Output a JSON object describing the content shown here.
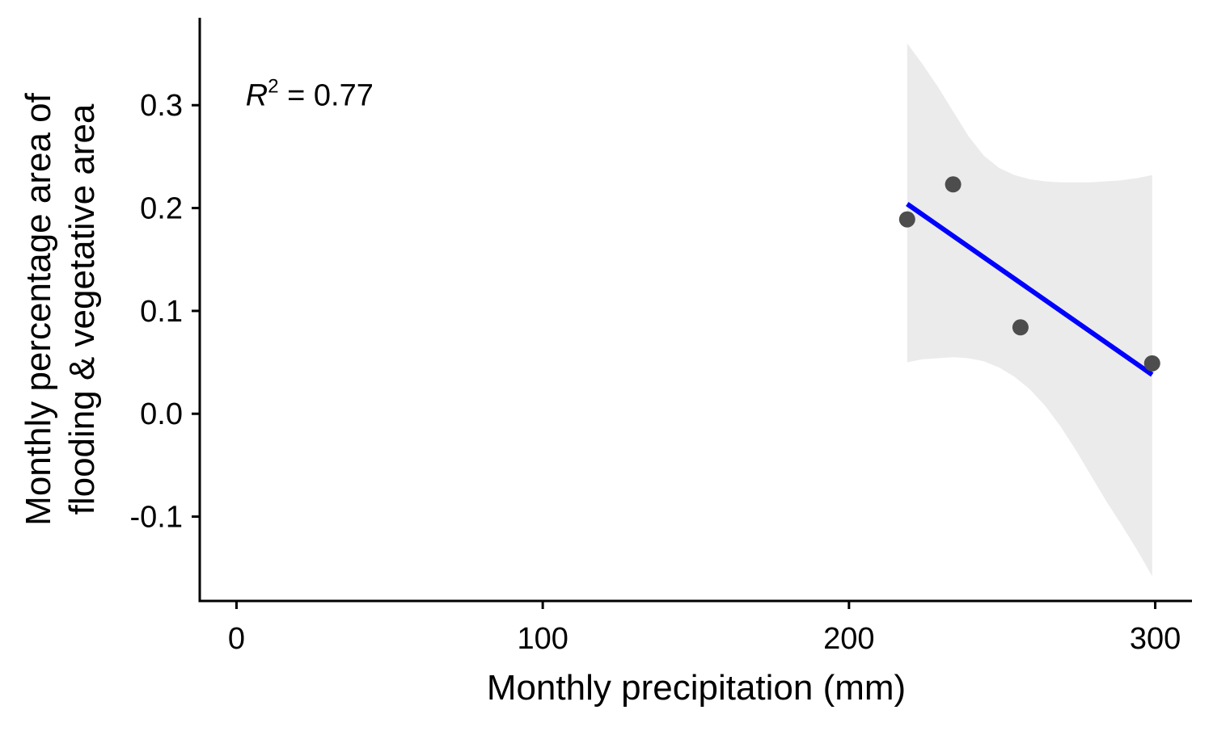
{
  "chart_data": {
    "type": "scatter",
    "title": "",
    "xlabel": "Monthly precipitation (mm)",
    "ylabel_lines": [
      "Monthly percentage area of",
      "flooding & vegetative area"
    ],
    "xlim": [
      -12,
      312
    ],
    "ylim": [
      -0.182,
      0.385
    ],
    "x_ticks": [
      0,
      100,
      200,
      300
    ],
    "x_tick_labels": [
      "0",
      "100",
      "200",
      "300"
    ],
    "y_ticks": [
      -0.1,
      0.0,
      0.1,
      0.2,
      0.3
    ],
    "y_tick_labels": [
      "-0.1",
      "0.0",
      "0.1",
      "0.2",
      "0.3"
    ],
    "grid": false,
    "legend": "none",
    "annotation": {
      "var": "R",
      "sup": "2",
      "rest": " = 0.77",
      "x": 3,
      "y": 0.31
    },
    "points": [
      {
        "x": 219,
        "y": 0.189
      },
      {
        "x": 234,
        "y": 0.223
      },
      {
        "x": 256,
        "y": 0.084
      },
      {
        "x": 299,
        "y": 0.049
      }
    ],
    "fit_line": {
      "x": [
        219,
        299
      ],
      "y": [
        0.204,
        0.038
      ],
      "color": "#0000ff"
    },
    "confidence_band": {
      "x": [
        219,
        224,
        229,
        234,
        239,
        244,
        249,
        254,
        259,
        264,
        269,
        274,
        279,
        284,
        289,
        294,
        299
      ],
      "upper": [
        0.36,
        0.34,
        0.318,
        0.294,
        0.27,
        0.251,
        0.239,
        0.232,
        0.228,
        0.226,
        0.225,
        0.225,
        0.225,
        0.226,
        0.227,
        0.229,
        0.232
      ],
      "lower": [
        0.05,
        0.053,
        0.054,
        0.055,
        0.054,
        0.051,
        0.045,
        0.036,
        0.024,
        0.008,
        -0.012,
        -0.035,
        -0.06,
        -0.085,
        -0.108,
        -0.132,
        -0.158
      ],
      "color": "#ebebeb"
    },
    "point_color": "#4d4d4d"
  }
}
